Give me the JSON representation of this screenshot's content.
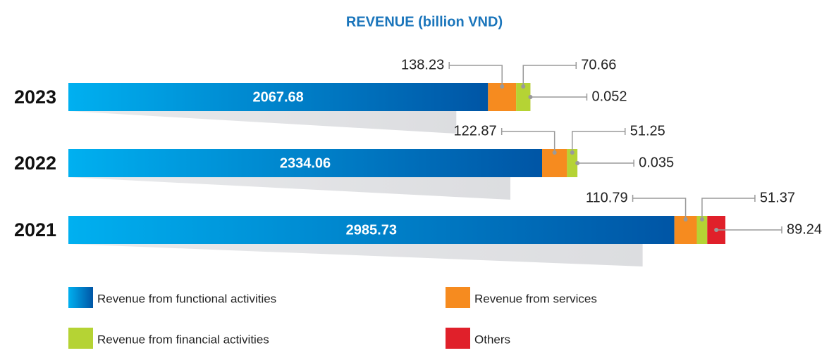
{
  "chart_data": {
    "type": "stacked-bar-horizontal",
    "title": "REVENUE (billion VND)",
    "categories": [
      "2023",
      "2022",
      "2021"
    ],
    "series": [
      {
        "name": "Revenue from functional activities",
        "color": "#0055a5",
        "values": [
          2067.68,
          2334.06,
          2985.73
        ]
      },
      {
        "name": "Revenue from services",
        "color": "#f68b1f",
        "values": [
          138.23,
          122.87,
          110.79
        ]
      },
      {
        "name": "Revenue from financial activities",
        "color": "#b5d334",
        "values": [
          70.66,
          51.25,
          51.37
        ]
      },
      {
        "name": "Others",
        "color": "#e0202a",
        "values": [
          0.052,
          0.035,
          89.24
        ]
      }
    ]
  }
}
